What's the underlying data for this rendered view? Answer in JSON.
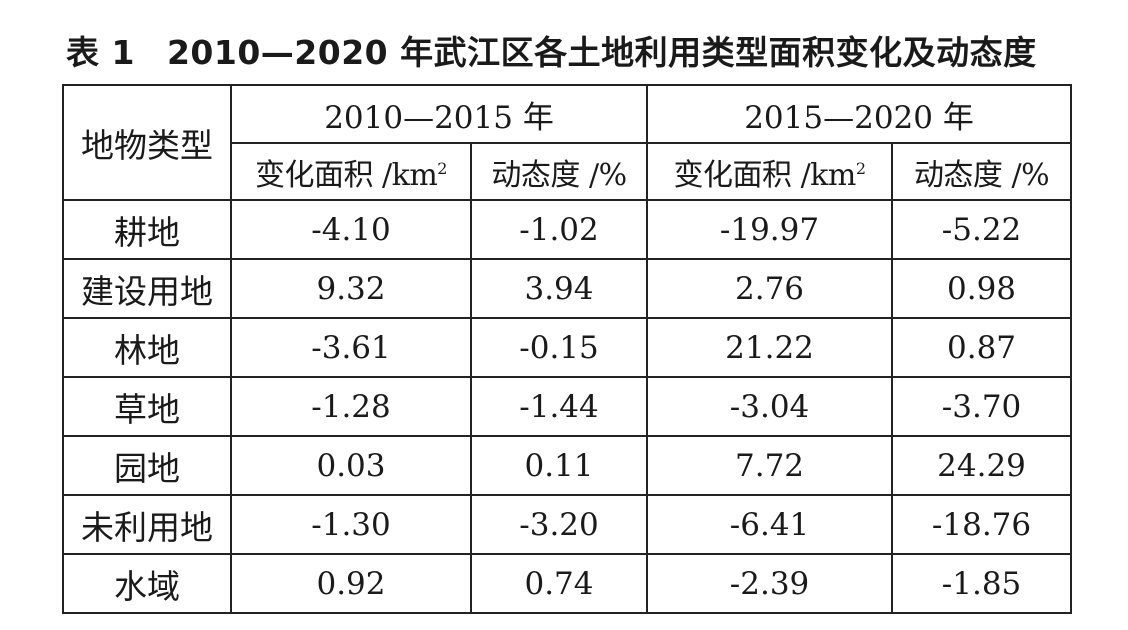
{
  "caption": {
    "number": "表 1",
    "title": "2010—2020 年武江区各土地利用类型面积变化及动态度"
  },
  "table": {
    "corner_header": "地物类型",
    "periods": [
      "2010—2015 年",
      "2015—2020 年"
    ],
    "subheaders": [
      {
        "label": "变化面积 /km",
        "sup": "2"
      },
      {
        "label": "动态度 /%",
        "sup": ""
      },
      {
        "label": "变化面积 /km",
        "sup": "2"
      },
      {
        "label": "动态度 /%",
        "sup": ""
      }
    ],
    "rows": [
      {
        "type": "耕地",
        "values": [
          "-4.10",
          "-1.02",
          "-19.97",
          "-5.22"
        ]
      },
      {
        "type": "建设用地",
        "values": [
          "9.32",
          "3.94",
          "2.76",
          "0.98"
        ]
      },
      {
        "type": "林地",
        "values": [
          "-3.61",
          "-0.15",
          "21.22",
          "0.87"
        ]
      },
      {
        "type": "草地",
        "values": [
          "-1.28",
          "-1.44",
          "-3.04",
          "-3.70"
        ]
      },
      {
        "type": "园地",
        "values": [
          "0.03",
          "0.11",
          "7.72",
          "24.29"
        ]
      },
      {
        "type": "未利用地",
        "values": [
          "-1.30",
          "-3.20",
          "-6.41",
          "-18.76"
        ]
      },
      {
        "type": "水域",
        "values": [
          "0.92",
          "0.74",
          "-2.39",
          "-1.85"
        ]
      }
    ]
  }
}
